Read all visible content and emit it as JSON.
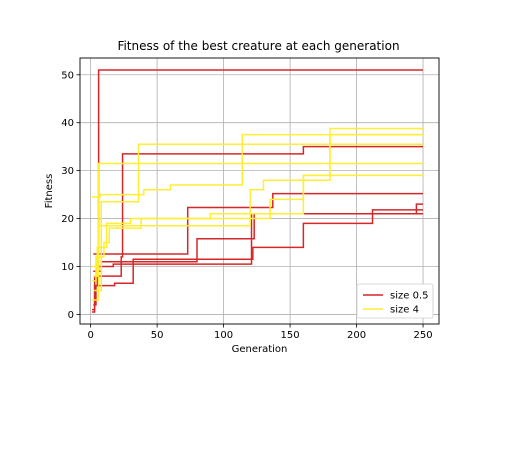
{
  "chart_data": {
    "type": "line",
    "title": "Fitness of the best creature at each generation",
    "xlabel": "Generation",
    "ylabel": "Fitness",
    "xlim": [
      -8,
      262
    ],
    "ylim": [
      -2,
      53.5
    ],
    "xticks": [
      0,
      50,
      100,
      150,
      200,
      250
    ],
    "yticks": [
      0,
      10,
      20,
      30,
      40,
      50
    ],
    "grid": true,
    "legend_position": "bottom-right",
    "colors": {
      "size_05": "#d62728",
      "size_4": "#ffee33"
    },
    "legend": [
      {
        "label": "size 0.5",
        "color": "#d62728"
      },
      {
        "label": "size 4",
        "color": "#ffee33"
      }
    ],
    "series": [
      {
        "group": "size 0.5",
        "color": "#d62728",
        "steps": [
          [
            1,
            0.5
          ],
          [
            3,
            8
          ],
          [
            5,
            11
          ],
          [
            6,
            51
          ],
          [
            250,
            51
          ]
        ]
      },
      {
        "group": "size 0.5",
        "color": "#d62728",
        "steps": [
          [
            1,
            1
          ],
          [
            3,
            6
          ],
          [
            5,
            8
          ],
          [
            23,
            12
          ],
          [
            24,
            33.5
          ],
          [
            160,
            35
          ],
          [
            250,
            35
          ]
        ]
      },
      {
        "group": "size 0.5",
        "color": "#d62728",
        "steps": [
          [
            2,
            2
          ],
          [
            4,
            6
          ],
          [
            18,
            6.5
          ],
          [
            32,
            11.5
          ],
          [
            122,
            14
          ],
          [
            160,
            19
          ],
          [
            212,
            21.8
          ],
          [
            250,
            21.8
          ]
        ]
      },
      {
        "group": "size 0.5",
        "color": "#d62728",
        "steps": [
          [
            2,
            12.6
          ],
          [
            73,
            22.3
          ],
          [
            137,
            25.2
          ],
          [
            250,
            25.2
          ]
        ]
      },
      {
        "group": "size 0.5",
        "color": "#d62728",
        "steps": [
          [
            3,
            9
          ],
          [
            6,
            10
          ],
          [
            17,
            10.5
          ],
          [
            120,
            10.5
          ],
          [
            121,
            21
          ],
          [
            245,
            23
          ],
          [
            250,
            23
          ]
        ]
      },
      {
        "group": "size 0.5",
        "color": "#d62728",
        "steps": [
          [
            2,
            9
          ],
          [
            8,
            11
          ],
          [
            80,
            15.8
          ],
          [
            123,
            21
          ],
          [
            213,
            21
          ],
          [
            250,
            21
          ]
        ]
      },
      {
        "group": "size 4",
        "color": "#ffee33",
        "steps": [
          [
            1,
            24.5
          ],
          [
            7,
            25
          ],
          [
            40,
            26
          ],
          [
            60,
            27
          ],
          [
            112,
            27
          ],
          [
            114,
            37.5
          ],
          [
            250,
            37.5
          ]
        ]
      },
      {
        "group": "size 4",
        "color": "#ffee33",
        "steps": [
          [
            1,
            3
          ],
          [
            6,
            31.5
          ],
          [
            250,
            31.5
          ]
        ]
      },
      {
        "group": "size 4",
        "color": "#ffee33",
        "steps": [
          [
            2,
            5
          ],
          [
            8,
            23.5
          ],
          [
            36,
            35.5
          ],
          [
            250,
            35.5
          ]
        ]
      },
      {
        "group": "size 4",
        "color": "#ffee33",
        "steps": [
          [
            1,
            7
          ],
          [
            4,
            12
          ],
          [
            10,
            15
          ],
          [
            14,
            18
          ],
          [
            38,
            20
          ],
          [
            112,
            20
          ],
          [
            120,
            26
          ],
          [
            130,
            28
          ],
          [
            180,
            37.5
          ],
          [
            250,
            37.5
          ]
        ]
      },
      {
        "group": "size 4",
        "color": "#ffee33",
        "steps": [
          [
            2,
            8
          ],
          [
            5,
            14
          ],
          [
            12,
            19
          ],
          [
            30,
            20
          ],
          [
            90,
            21
          ],
          [
            160,
            29
          ],
          [
            180,
            38.8
          ],
          [
            250,
            38.8
          ]
        ]
      },
      {
        "group": "size 4",
        "color": "#ffee33",
        "steps": [
          [
            1,
            10
          ],
          [
            6,
            18.5
          ],
          [
            120,
            20
          ],
          [
            135,
            24
          ],
          [
            160,
            29
          ],
          [
            250,
            29
          ]
        ]
      }
    ]
  }
}
